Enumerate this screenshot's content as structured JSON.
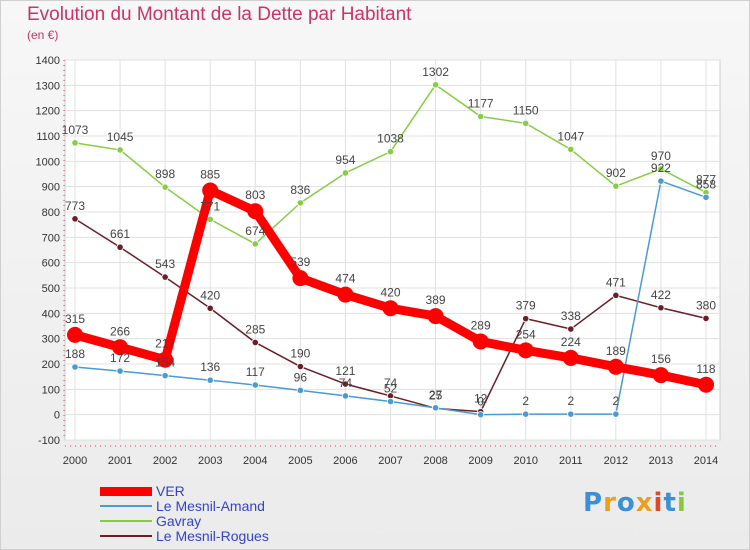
{
  "title": "Evolution du Montant de la Dette par Habitant",
  "subtitle": "(en €)",
  "logo": {
    "letters": [
      "P",
      "r",
      "o",
      "x",
      "i",
      "t",
      "i"
    ],
    "colors": [
      "#3d8fd6",
      "#e8a020",
      "#3d8fd6",
      "#e8a020",
      "#d84c28",
      "#3d8fd6",
      "#8cc63f"
    ]
  },
  "chart_data": {
    "type": "line",
    "title": "Evolution du Montant de la Dette par Habitant",
    "ylabel": "(en €)",
    "x": [
      "2000",
      "2001",
      "2002",
      "2003",
      "2004",
      "2005",
      "2006",
      "2007",
      "2008",
      "2009",
      "2010",
      "2011",
      "2012",
      "2013",
      "2014"
    ],
    "ylim": [
      -100,
      1400
    ],
    "yticks": [
      -100,
      0,
      100,
      200,
      300,
      400,
      500,
      600,
      700,
      800,
      900,
      1000,
      1100,
      1200,
      1300,
      1400
    ],
    "grid": true,
    "legend": "bottom-left",
    "series": [
      {
        "name": "VER",
        "color": "#ff0000",
        "values": [
          315,
          266,
          217,
          885,
          803,
          539,
          474,
          420,
          389,
          289,
          254,
          224,
          189,
          156,
          118
        ]
      },
      {
        "name": "Le Mesnil-Amand",
        "color": "#4a9ad4",
        "values": [
          188,
          172,
          154,
          136,
          117,
          96,
          74,
          52,
          27,
          0,
          2,
          2,
          2,
          922,
          858
        ]
      },
      {
        "name": "Gavray",
        "color": "#88cc44",
        "values": [
          1073,
          1045,
          898,
          771,
          674,
          836,
          954,
          1038,
          1302,
          1177,
          1150,
          1047,
          902,
          970,
          877
        ]
      },
      {
        "name": "Le Mesnil-Rogues",
        "color": "#6b1f24",
        "values": [
          773,
          661,
          543,
          420,
          285,
          190,
          121,
          74,
          25,
          12,
          379,
          338,
          471,
          422,
          380
        ]
      }
    ]
  }
}
